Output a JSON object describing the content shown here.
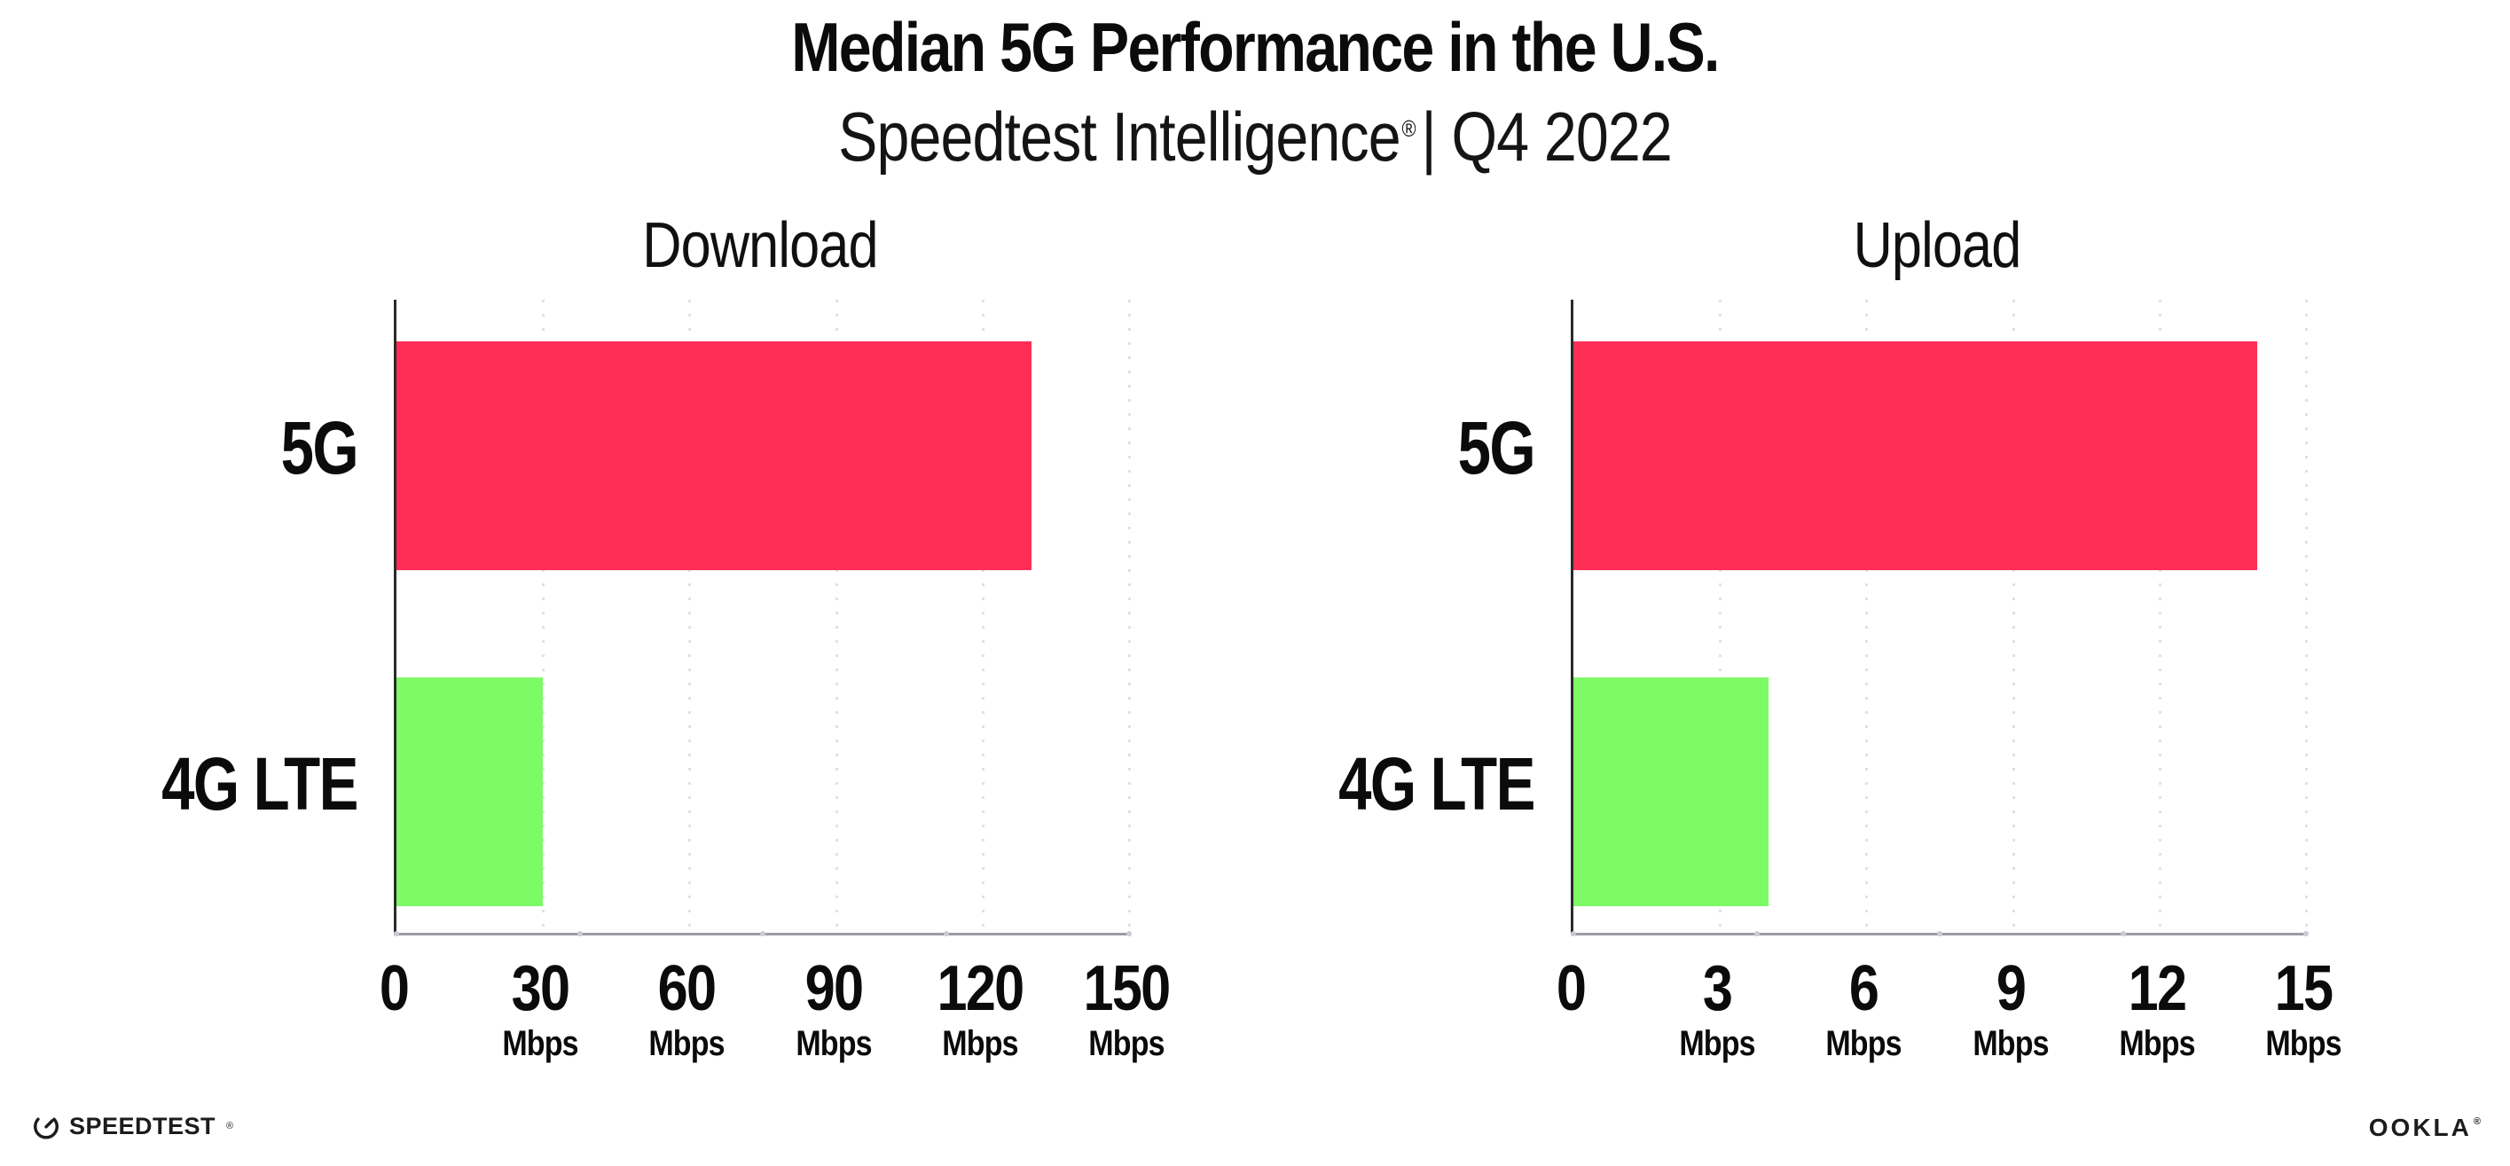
{
  "header": {
    "title": "Median 5G Performance in the U.S.",
    "subtitle_brand": "Speedtest Intelligence",
    "subtitle_reg": "®",
    "subtitle_rest": "| Q4 2022"
  },
  "chart_data": [
    {
      "type": "bar",
      "orientation": "horizontal",
      "title": "Download",
      "categories": [
        "5G",
        "4G LTE"
      ],
      "values": [
        130,
        30
      ],
      "unit": "Mbps",
      "xticks": [
        0,
        30,
        60,
        90,
        120,
        150
      ],
      "xlim": [
        0,
        150
      ],
      "grid": "dotted-vertical",
      "legend": "none"
    },
    {
      "type": "bar",
      "orientation": "horizontal",
      "title": "Upload",
      "categories": [
        "5G",
        "4G LTE"
      ],
      "values": [
        14,
        4
      ],
      "unit": "Mbps",
      "xticks": [
        0,
        3,
        6,
        9,
        12,
        15
      ],
      "xlim": [
        0,
        15
      ],
      "grid": "dotted-vertical",
      "legend": "none"
    }
  ],
  "colors": {
    "bars": [
      "#FF2E56",
      "#7CFB66"
    ],
    "spine": "#2B2B2B",
    "axis": "#9B9BA1",
    "grid": "#E0E0EA",
    "text": "#0B0B0B"
  },
  "footer": {
    "speedtest_label": "SPEEDTEST",
    "speedtest_mark": "®",
    "ookla_label": "OOKLA",
    "ookla_mark": "®"
  }
}
